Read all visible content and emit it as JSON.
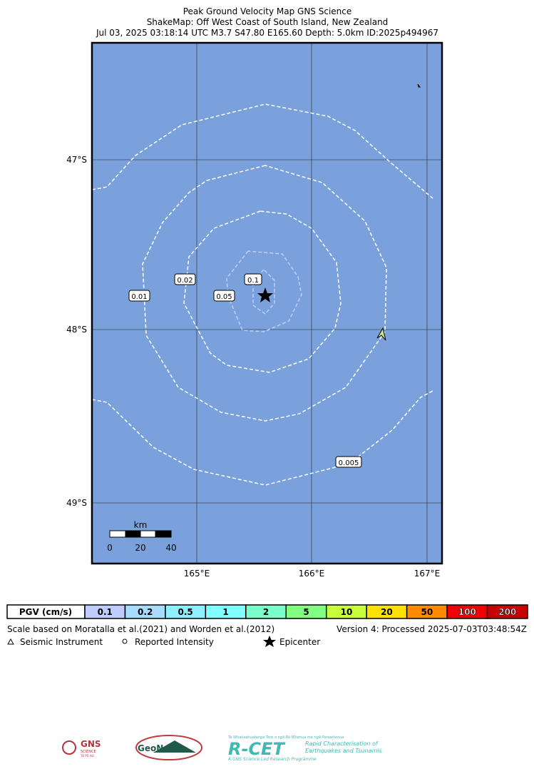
{
  "header": {
    "title": [
      "Peak Ground Velocity Map GNS Science",
      "ShakeMap: Off West Coast of South Island, New Zealand",
      "Jul 03, 2025 03:18:14 UTC M3.7 S47.80 E165.60 Depth: 5.0km ID:2025p494967"
    ]
  },
  "map": {
    "lat_labels": [
      "47°S",
      "48°S",
      "49°S"
    ],
    "lon_labels": [
      "165°E",
      "166°E",
      "167°E"
    ],
    "contour_labels": [
      "0.01",
      "0.02",
      "0.05",
      "0.1",
      "0.005"
    ],
    "scale_bar": {
      "unit": "km",
      "ticks": [
        "0",
        "20",
        "40"
      ]
    }
  },
  "legend": {
    "label": "PGV (cm/s)",
    "items": [
      {
        "label": "0.1",
        "color": "#bfccff"
      },
      {
        "label": "0.2",
        "color": "#a8dcff"
      },
      {
        "label": "0.5",
        "color": "#8cf0ff"
      },
      {
        "label": "1",
        "color": "#80ffff"
      },
      {
        "label": "2",
        "color": "#7affc8"
      },
      {
        "label": "5",
        "color": "#80ff80"
      },
      {
        "label": "10",
        "color": "#c8ff3c"
      },
      {
        "label": "20",
        "color": "#ffe100"
      },
      {
        "label": "50",
        "color": "#ff8c00"
      },
      {
        "label": "100",
        "color": "#f00000"
      },
      {
        "label": "200",
        "color": "#c80000"
      }
    ]
  },
  "notes": {
    "scale": "Scale based on Moratalla et al.(2021) and Worden et al.(2012)",
    "version": "Version 4: Processed 2025-07-03T03:48:54Z",
    "key": [
      "Seismic Instrument",
      "Reported Intensity",
      "Epicenter"
    ]
  },
  "logos": {
    "gns": [
      "GNS",
      "SCIENCE",
      "TE PŪ AO"
    ],
    "geonet": "GeoNet",
    "rcet": [
      "Te Whakaahuatanga Tere o ngā Rū Whenua me ngā Parawhenua",
      "R-CET",
      "Rapid Characterisation of",
      "Earthquakes and Tsunamis",
      "A GNS Science Led Research Programme"
    ]
  }
}
